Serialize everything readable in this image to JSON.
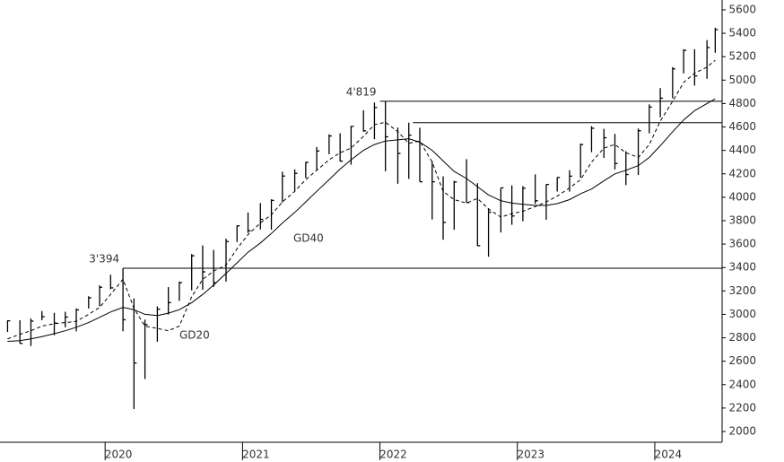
{
  "chart_data": {
    "type": "ohlc",
    "x": [
      2019.29,
      2019.38,
      2019.46,
      2019.54,
      2019.63,
      2019.71,
      2019.79,
      2019.88,
      2019.96,
      2020.04,
      2020.13,
      2020.21,
      2020.29,
      2020.38,
      2020.46,
      2020.54,
      2020.63,
      2020.71,
      2020.79,
      2020.88,
      2020.96,
      2021.04,
      2021.13,
      2021.21,
      2021.29,
      2021.38,
      2021.46,
      2021.54,
      2021.63,
      2021.71,
      2021.79,
      2021.88,
      2021.96,
      2022.04,
      2022.13,
      2022.21,
      2022.29,
      2022.38,
      2022.46,
      2022.54,
      2022.63,
      2022.71,
      2022.79,
      2022.88,
      2022.96,
      2023.04,
      2023.13,
      2023.21,
      2023.29,
      2023.38,
      2023.46,
      2023.54,
      2023.63,
      2023.71,
      2023.79,
      2023.88,
      2023.96,
      2024.04,
      2024.13,
      2024.21,
      2024.29,
      2024.38,
      2024.44
    ],
    "high": [
      2950,
      2950,
      2965,
      3028,
      3013,
      3022,
      3050,
      3155,
      3248,
      3338,
      3394,
      3136,
      2955,
      3068,
      3233,
      3280,
      3515,
      3588,
      3550,
      3646,
      3760,
      3870,
      3950,
      3983,
      4218,
      4238,
      4302,
      4429,
      4537,
      4546,
      4608,
      4743,
      4808,
      4819,
      4595,
      4637,
      4593,
      4307,
      4178,
      4140,
      4325,
      4120,
      3906,
      4080,
      4101,
      4095,
      4195,
      4110,
      4170,
      4231,
      4458,
      4607,
      4584,
      4541,
      4393,
      4587,
      4793,
      4932,
      5111,
      5264,
      5264,
      5342,
      5447
    ],
    "low": [
      2850,
      2750,
      2730,
      2950,
      2822,
      2890,
      2855,
      3050,
      3070,
      3215,
      2855,
      2192,
      2448,
      2766,
      2999,
      3115,
      3205,
      3210,
      3234,
      3280,
      3618,
      3695,
      3725,
      3723,
      3955,
      4056,
      4164,
      4233,
      4367,
      4306,
      4278,
      4560,
      4495,
      4222,
      4115,
      4157,
      4132,
      3810,
      3637,
      3722,
      3955,
      3584,
      3492,
      3699,
      3765,
      3795,
      3944,
      3808,
      4049,
      4048,
      4167,
      4385,
      4336,
      4238,
      4104,
      4190,
      4546,
      4683,
      4845,
      5057,
      4953,
      5011,
      5234
    ],
    "close": [
      2945,
      2752,
      2942,
      2980,
      2926,
      2977,
      3038,
      3141,
      3231,
      3226,
      2954,
      2585,
      2912,
      3044,
      3100,
      3271,
      3500,
      3363,
      3270,
      3622,
      3756,
      3714,
      3811,
      3973,
      4181,
      4204,
      4298,
      4395,
      4523,
      4308,
      4605,
      4567,
      4766,
      4516,
      4374,
      4530,
      4132,
      4132,
      3785,
      4130,
      3955,
      3586,
      3872,
      4080,
      3840,
      4077,
      3970,
      4109,
      4169,
      4180,
      4450,
      4589,
      4508,
      4288,
      4194,
      4568,
      4770,
      4846,
      5096,
      5254,
      5036,
      5278,
      5431
    ],
    "series": [
      {
        "name": "GD20",
        "color": "#000000",
        "dashed": true,
        "values": [
          2790,
          2830,
          2860,
          2900,
          2920,
          2930,
          2940,
          3000,
          3060,
          3170,
          3300,
          3050,
          2900,
          2880,
          2860,
          2900,
          3150,
          3300,
          3370,
          3420,
          3560,
          3680,
          3780,
          3850,
          3960,
          4050,
          4150,
          4230,
          4320,
          4380,
          4420,
          4520,
          4620,
          4640,
          4560,
          4460,
          4480,
          4300,
          4050,
          3980,
          3950,
          3990,
          3900,
          3830,
          3860,
          3880,
          3920,
          3960,
          4010,
          4080,
          4150,
          4300,
          4420,
          4450,
          4380,
          4340,
          4450,
          4650,
          4820,
          4980,
          5060,
          5110,
          5170
        ]
      },
      {
        "name": "GD40",
        "color": "#000000",
        "dashed": false,
        "values": [
          2770,
          2775,
          2790,
          2810,
          2835,
          2860,
          2890,
          2930,
          2975,
          3020,
          3060,
          3040,
          3000,
          2990,
          3010,
          3040,
          3100,
          3170,
          3250,
          3350,
          3440,
          3530,
          3610,
          3690,
          3780,
          3870,
          3960,
          4050,
          4150,
          4240,
          4320,
          4400,
          4450,
          4480,
          4490,
          4500,
          4470,
          4400,
          4310,
          4220,
          4160,
          4090,
          4020,
          3970,
          3950,
          3940,
          3930,
          3930,
          3945,
          3980,
          4030,
          4070,
          4140,
          4200,
          4230,
          4270,
          4340,
          4440,
          4560,
          4660,
          4740,
          4800,
          4840
        ]
      }
    ],
    "reference_lines": [
      {
        "value": 3394,
        "label": "3'394",
        "x": 2020.13
      },
      {
        "value": 4819,
        "label": "4'819",
        "x": 2022.0
      },
      {
        "value": 4637,
        "x": 2022.24
      }
    ],
    "xlim": [
      2019.235,
      2024.49
    ],
    "xticks": [
      2020,
      2021,
      2022,
      2023,
      2024
    ],
    "ylim": [
      1908,
      5684
    ],
    "yticks": [
      2000,
      2200,
      2400,
      2600,
      2800,
      3000,
      3200,
      3400,
      3600,
      3800,
      4000,
      4200,
      4400,
      4600,
      4800,
      5000,
      5200,
      5400,
      5600
    ]
  }
}
